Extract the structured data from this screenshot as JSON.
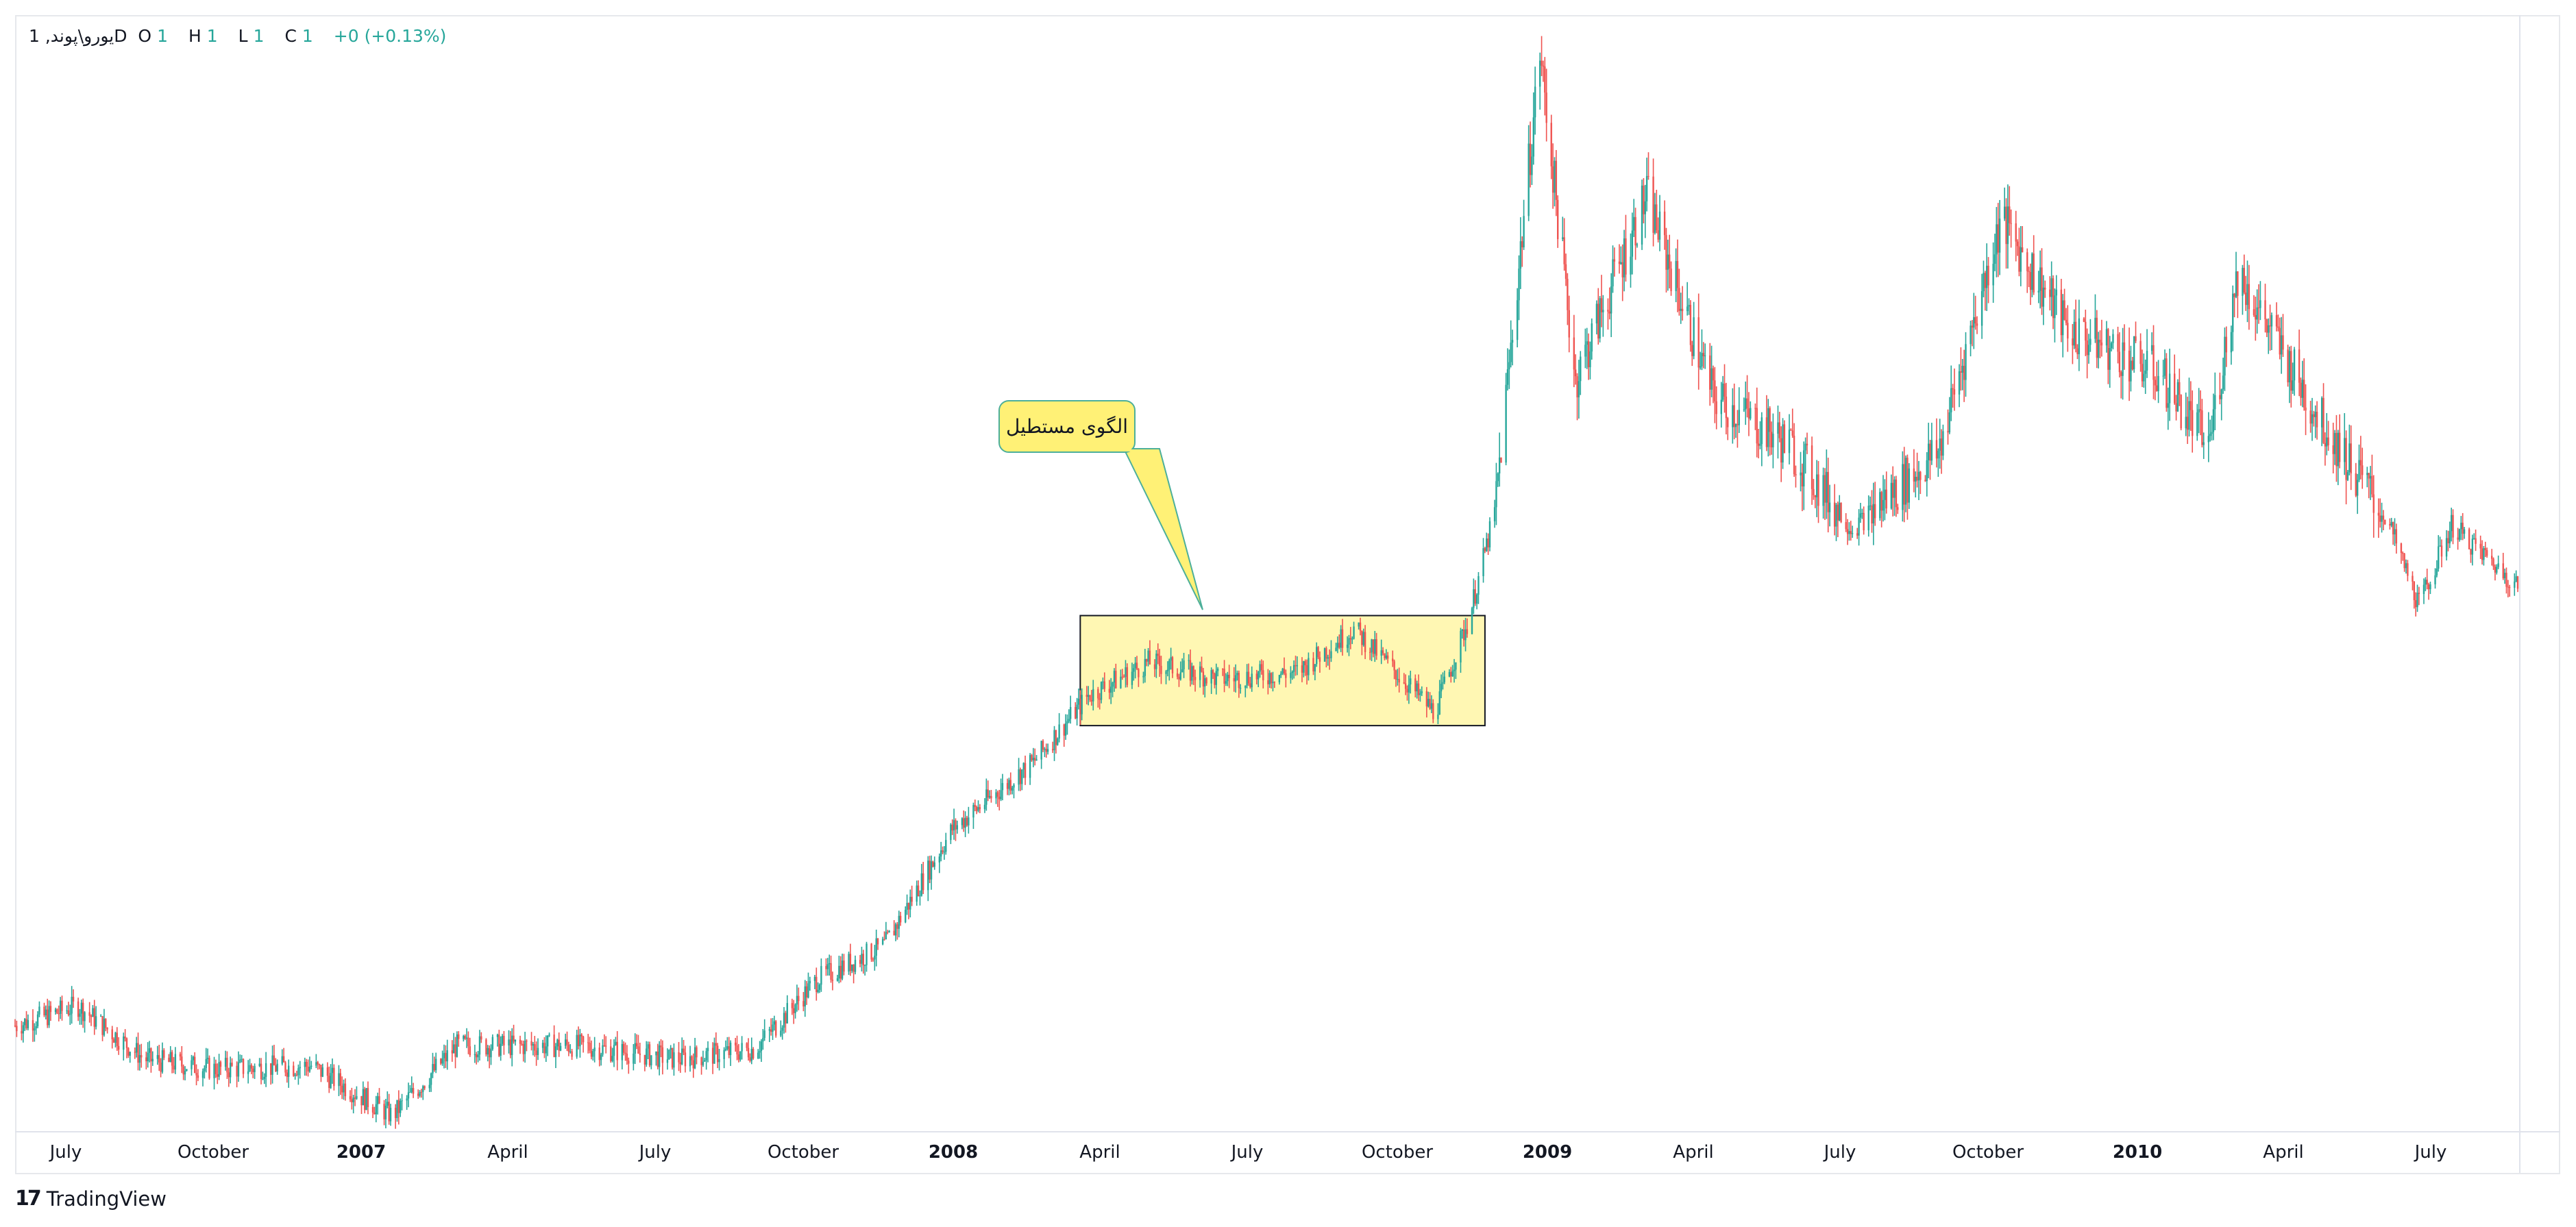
{
  "legend": {
    "symbol": "یورو\\پوند, 1D",
    "open_label": "O",
    "open_value": "1",
    "high_label": "H",
    "high_value": "1",
    "low_label": "L",
    "low_value": "1",
    "close_label": "C",
    "close_value": "1",
    "change": "+0 (+0.13%)"
  },
  "annotation": {
    "text": "الگوی مستطیل"
  },
  "brand": {
    "logo": "17",
    "name": "TradingView"
  },
  "colors": {
    "up": "#26a69a",
    "down": "#ef5350",
    "box_fill": "#fff7b3",
    "callout_fill": "#fff176",
    "callout_border": "#4caf9a"
  },
  "chart_data": {
    "type": "candlestick",
    "x_ticks": [
      "July",
      "October",
      "2007",
      "April",
      "July",
      "October",
      "2008",
      "April",
      "July",
      "October",
      "2009",
      "April",
      "July",
      "October",
      "2010",
      "April",
      "July"
    ],
    "bold_ticks": [
      "2007",
      "2008",
      "2009",
      "2010"
    ],
    "series": [
      {
        "name": "یورو\\پوند, 1D",
        "approx_close_path": [
          {
            "x": "2006-06-01",
            "y": 0.686
          },
          {
            "x": "2006-07-10",
            "y": 0.692
          },
          {
            "x": "2006-08-20",
            "y": 0.676
          },
          {
            "x": "2006-10-01",
            "y": 0.673
          },
          {
            "x": "2006-12-01",
            "y": 0.674
          },
          {
            "x": "2007-01-20",
            "y": 0.659
          },
          {
            "x": "2007-03-01",
            "y": 0.68
          },
          {
            "x": "2007-05-15",
            "y": 0.68
          },
          {
            "x": "2007-07-15",
            "y": 0.676
          },
          {
            "x": "2007-09-01",
            "y": 0.679
          },
          {
            "x": "2007-10-10",
            "y": 0.7
          },
          {
            "x": "2007-11-20",
            "y": 0.71
          },
          {
            "x": "2008-01-01",
            "y": 0.745
          },
          {
            "x": "2008-02-20",
            "y": 0.765
          },
          {
            "x": "2008-03-25",
            "y": 0.785
          },
          {
            "x": "2008-05-01",
            "y": 0.795
          },
          {
            "x": "2008-06-15",
            "y": 0.79
          },
          {
            "x": "2008-08-01",
            "y": 0.792
          },
          {
            "x": "2008-09-05",
            "y": 0.805
          },
          {
            "x": "2008-10-05",
            "y": 0.79
          },
          {
            "x": "2008-10-25",
            "y": 0.78
          },
          {
            "x": "2008-11-15",
            "y": 0.808
          },
          {
            "x": "2008-12-01",
            "y": 0.84
          },
          {
            "x": "2008-12-29",
            "y": 0.978
          },
          {
            "x": "2009-01-20",
            "y": 0.88
          },
          {
            "x": "2009-03-05",
            "y": 0.935
          },
          {
            "x": "2009-04-15",
            "y": 0.875
          },
          {
            "x": "2009-06-01",
            "y": 0.86
          },
          {
            "x": "2009-07-10",
            "y": 0.835
          },
          {
            "x": "2009-09-01",
            "y": 0.858
          },
          {
            "x": "2009-10-10",
            "y": 0.928
          },
          {
            "x": "2009-11-20",
            "y": 0.895
          },
          {
            "x": "2010-01-15",
            "y": 0.882
          },
          {
            "x": "2010-02-15",
            "y": 0.86
          },
          {
            "x": "2010-03-05",
            "y": 0.912
          },
          {
            "x": "2010-04-20",
            "y": 0.872
          },
          {
            "x": "2010-06-05",
            "y": 0.838
          },
          {
            "x": "2010-06-25",
            "y": 0.812
          },
          {
            "x": "2010-07-15",
            "y": 0.836
          },
          {
            "x": "2010-08-25",
            "y": 0.818
          }
        ]
      }
    ],
    "rectangle_pattern": {
      "x_range": [
        "2008-03-20",
        "2008-11-25"
      ],
      "y_range": [
        0.776,
        0.809
      ]
    },
    "grid": false,
    "legend_position": "top-left"
  }
}
